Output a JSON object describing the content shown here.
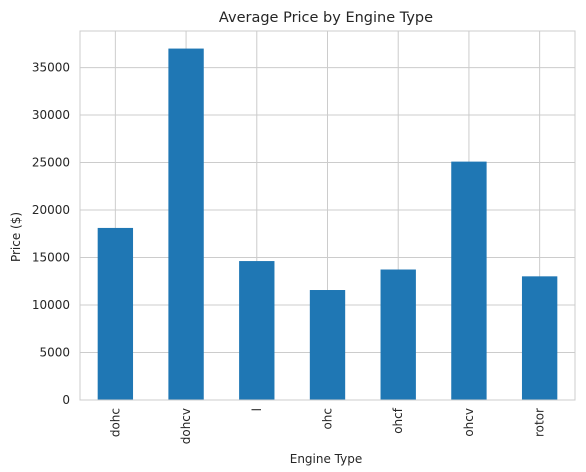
{
  "chart_data": {
    "type": "bar",
    "title": "Average Price by Engine Type",
    "xlabel": "Engine Type",
    "ylabel": "Price ($)",
    "categories": [
      "dohc",
      "dohcv",
      "l",
      "ohc",
      "ohcf",
      "ohcv",
      "rotor"
    ],
    "values": [
      18116,
      37000,
      14628,
      11580,
      13738,
      25098,
      13020
    ],
    "ylim": [
      0,
      38850
    ],
    "yticks": [
      0,
      5000,
      10000,
      15000,
      20000,
      25000,
      30000,
      35000
    ],
    "grid": true,
    "bar_color": "#1f77b4",
    "grid_color": "#cccccc",
    "spine_color": "#cccccc"
  }
}
